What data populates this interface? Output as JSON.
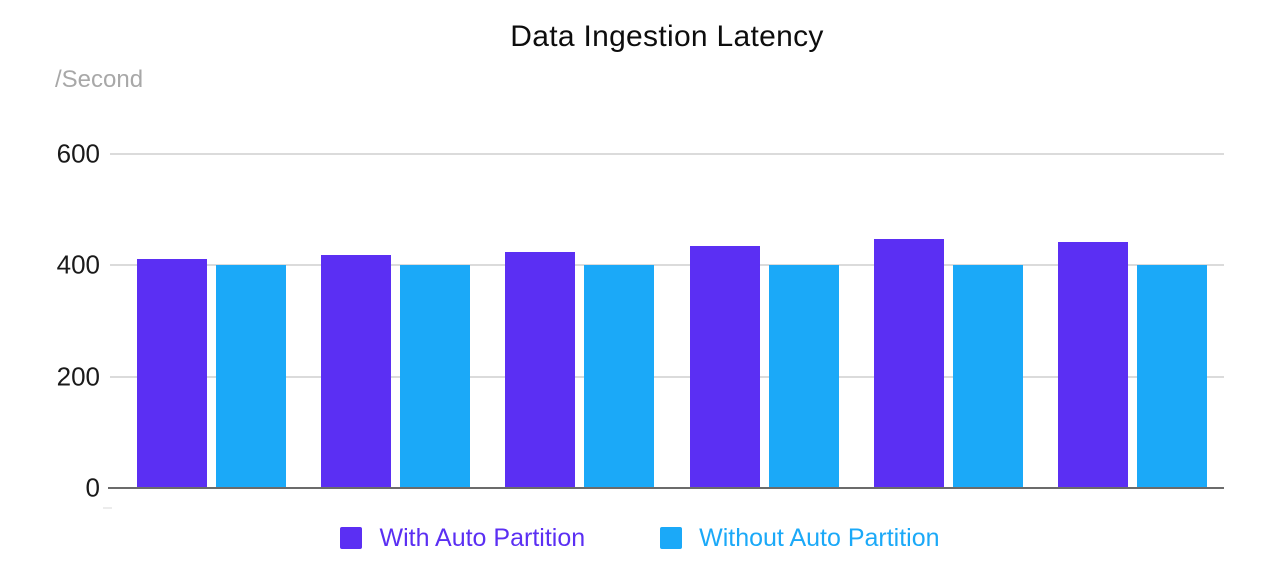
{
  "chart_data": {
    "type": "bar",
    "title": "Data Ingestion Latency",
    "unit_label": "/Second",
    "xlabel": "",
    "ylabel": "/Second",
    "x": [
      1,
      2,
      3,
      4,
      5,
      6
    ],
    "x_tick_labels_visible": false,
    "series": [
      {
        "name": "With Auto Partition",
        "color": "#5b2ff3",
        "values": [
          411,
          418,
          424,
          435,
          447,
          442
        ]
      },
      {
        "name": "Without Auto Partition",
        "color": "#1ba9f8",
        "values": [
          400,
          400,
          400,
          400,
          400,
          400
        ]
      }
    ],
    "ylim": [
      0,
      600
    ],
    "yticks": [
      0,
      200,
      400,
      600
    ],
    "grid": "horizontal",
    "gridline_color": "#dbdbdb",
    "axis_line_color": "#6b6b6b",
    "legend_position": "bottom",
    "background_color": "#ffffff"
  }
}
